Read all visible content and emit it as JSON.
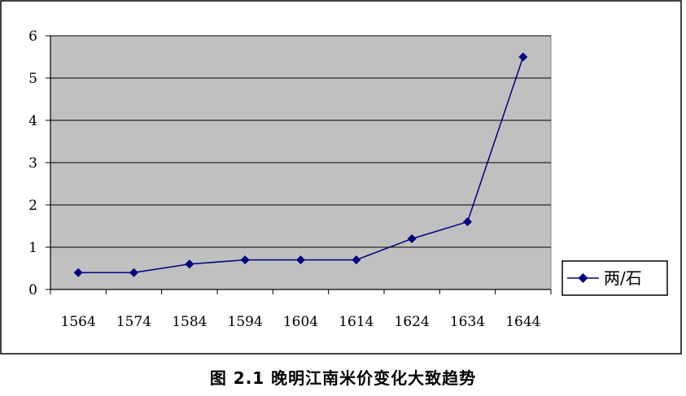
{
  "caption": "图 2.1  晚明江南米价变化大致趋势",
  "chart_data": {
    "type": "line",
    "title": "",
    "xlabel": "",
    "ylabel": "",
    "categories": [
      "1564",
      "1574",
      "1584",
      "1594",
      "1604",
      "1614",
      "1624",
      "1634",
      "1644"
    ],
    "series": [
      {
        "name": "两/石",
        "values": [
          0.4,
          0.4,
          0.6,
          0.7,
          0.7,
          0.7,
          1.2,
          1.6,
          5.5
        ],
        "color": "#000080",
        "marker": "diamond"
      }
    ],
    "ylim": [
      0,
      6
    ],
    "yticks": [
      0,
      1,
      2,
      3,
      4,
      5,
      6
    ],
    "grid": "horizontal",
    "plot_background": "#c0c0c0",
    "legend_position": "right"
  }
}
